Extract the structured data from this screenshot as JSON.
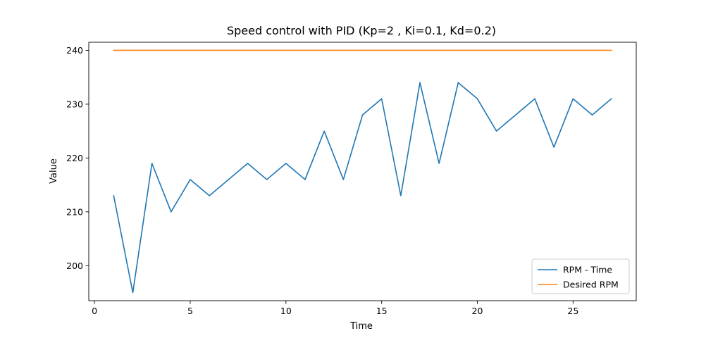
{
  "chart_data": {
    "type": "line",
    "title": "Speed control with PID (Kp=2 , Ki=0.1, Kd=0.2)",
    "xlabel": "Time",
    "ylabel": "Value",
    "xlim": [
      -0.3,
      28.3
    ],
    "ylim": [
      193.5,
      241.5
    ],
    "xticks": [
      0,
      5,
      10,
      15,
      20,
      25
    ],
    "yticks": [
      200,
      210,
      220,
      230,
      240
    ],
    "x": [
      1,
      2,
      3,
      4,
      5,
      6,
      7,
      8,
      9,
      10,
      11,
      12,
      13,
      14,
      15,
      16,
      17,
      18,
      19,
      20,
      21,
      22,
      23,
      24,
      25,
      26,
      27
    ],
    "series": [
      {
        "name": "RPM - Time",
        "color": "#1f77b4",
        "values": [
          213,
          195,
          219,
          210,
          216,
          213,
          216,
          219,
          216,
          219,
          216,
          225,
          216,
          228,
          231,
          213,
          234,
          219,
          234,
          231,
          225,
          228,
          231,
          222,
          231,
          228,
          231
        ]
      },
      {
        "name": "Desired RPM",
        "color": "#ff7f0e",
        "values": [
          240,
          240,
          240,
          240,
          240,
          240,
          240,
          240,
          240,
          240,
          240,
          240,
          240,
          240,
          240,
          240,
          240,
          240,
          240,
          240,
          240,
          240,
          240,
          240,
          240,
          240,
          240
        ]
      }
    ],
    "legend_position": "lower-right",
    "grid": false
  }
}
